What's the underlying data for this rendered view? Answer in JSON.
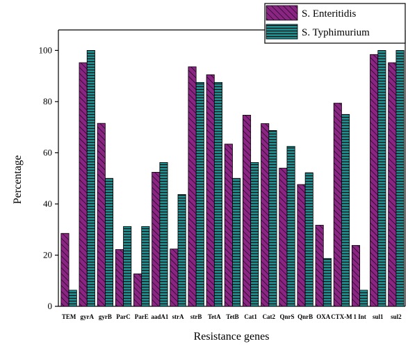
{
  "chart_data": {
    "type": "bar",
    "xlabel": "Resistance genes",
    "ylabel": "Percentage",
    "ylim": [
      0,
      108
    ],
    "yticks": [
      0,
      20,
      40,
      60,
      80,
      100
    ],
    "grid": false,
    "legend_position": "top-right",
    "categories": [
      "TEM",
      "gyrA",
      "gyrB",
      "ParC",
      "ParE",
      "aadA1",
      "strA",
      "strB",
      "TetA",
      "TetB",
      "Cat1",
      "Cat2",
      "QnrS",
      "QnrB",
      "OXA",
      "CTX-M",
      "1 Int",
      "sul1",
      "sul2"
    ],
    "series": [
      {
        "name": "S. Enteritidis",
        "color": "#8B2583",
        "pattern": "diagonal-hatch",
        "values": [
          28.5,
          95.2,
          71.5,
          22.2,
          12.7,
          52.4,
          22.4,
          93.6,
          90.5,
          63.4,
          74.7,
          71.4,
          54.0,
          47.6,
          31.7,
          79.4,
          23.8,
          98.4,
          95.2
        ]
      },
      {
        "name": "S. Typhimurium",
        "color": "#1C8A8A",
        "pattern": "horizontal-hatch",
        "values": [
          6.3,
          100,
          50.0,
          31.2,
          31.2,
          56.2,
          43.7,
          87.5,
          87.5,
          50.0,
          56.2,
          68.7,
          62.5,
          52.2,
          18.7,
          75.0,
          6.3,
          100,
          100
        ]
      }
    ]
  }
}
